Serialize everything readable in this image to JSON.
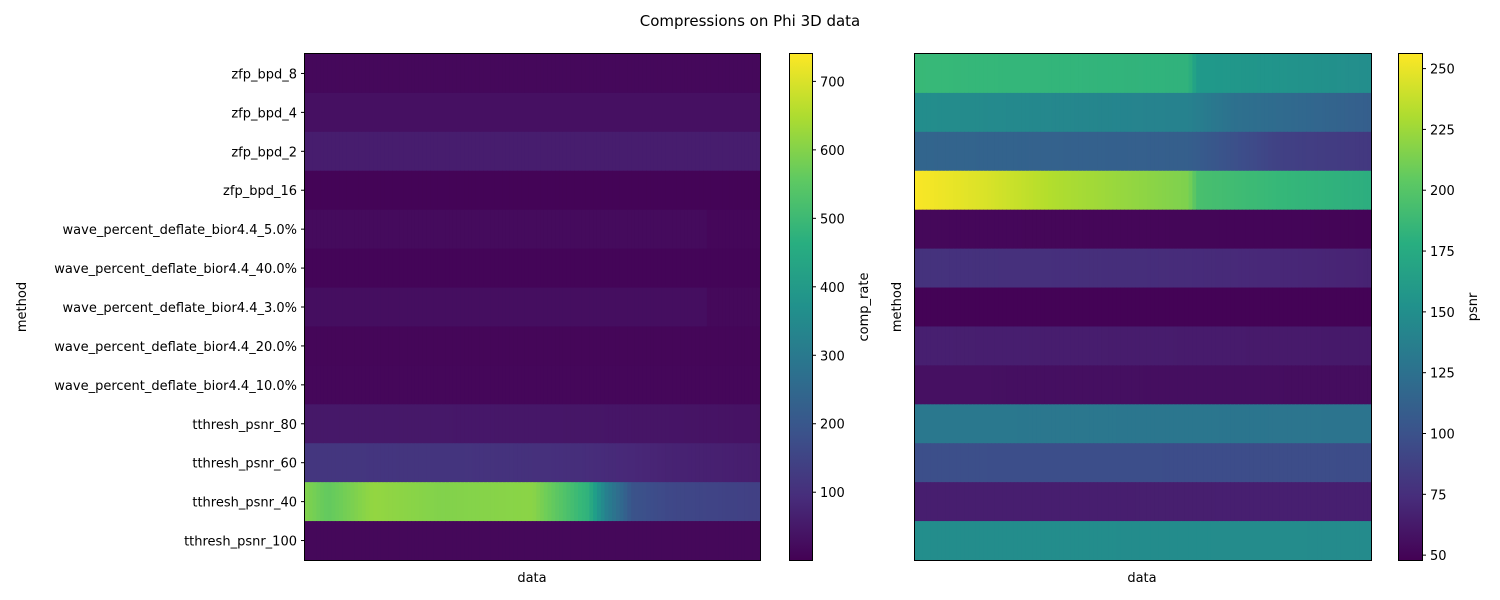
{
  "figure": {
    "title": "Compressions on Phi 3D data"
  },
  "chart_data": [
    {
      "type": "heatmap",
      "xlabel": "data",
      "ylabel": "method",
      "colorbar_label": "comp_rate",
      "colormap": "viridis",
      "clim": [
        1,
        740
      ],
      "colorbar_ticks": [
        100,
        200,
        300,
        400,
        500,
        600,
        700
      ],
      "rows": [
        {
          "label": "zfp_bpd_8",
          "profile": [
            [
              0,
              16
            ],
            [
              1,
              16
            ]
          ]
        },
        {
          "label": "zfp_bpd_4",
          "profile": [
            [
              0,
              32
            ],
            [
              1,
              32
            ]
          ]
        },
        {
          "label": "zfp_bpd_2",
          "profile": [
            [
              0,
              60
            ],
            [
              1,
              60
            ]
          ]
        },
        {
          "label": "zfp_bpd_16",
          "profile": [
            [
              0,
              8
            ],
            [
              1,
              8
            ]
          ]
        },
        {
          "label": "wave_percent_deflate_bior4.4_5.0%",
          "profile": [
            [
              0,
              22
            ],
            [
              0.88,
              22
            ],
            [
              0.885,
              14
            ],
            [
              1,
              14
            ]
          ]
        },
        {
          "label": "wave_percent_deflate_bior4.4_40.0%",
          "profile": [
            [
              0,
              10
            ],
            [
              1,
              10
            ]
          ]
        },
        {
          "label": "wave_percent_deflate_bior4.4_3.0%",
          "profile": [
            [
              0,
              28
            ],
            [
              0.88,
              28
            ],
            [
              0.885,
              18
            ],
            [
              1,
              18
            ]
          ]
        },
        {
          "label": "wave_percent_deflate_bior4.4_20.0%",
          "profile": [
            [
              0,
              12
            ],
            [
              1,
              12
            ]
          ]
        },
        {
          "label": "wave_percent_deflate_bior4.4_10.0%",
          "profile": [
            [
              0,
              14
            ],
            [
              1,
              14
            ]
          ]
        },
        {
          "label": "tthresh_psnr_80",
          "profile": [
            [
              0,
              50
            ],
            [
              0.4,
              48
            ],
            [
              0.8,
              42
            ],
            [
              1,
              36
            ]
          ]
        },
        {
          "label": "tthresh_psnr_60",
          "profile": [
            [
              0,
              118
            ],
            [
              0.35,
              112
            ],
            [
              0.6,
              98
            ],
            [
              0.8,
              72
            ],
            [
              1,
              60
            ]
          ]
        },
        {
          "label": "tthresh_psnr_40",
          "profile": [
            [
              0,
              600
            ],
            [
              0.05,
              560
            ],
            [
              0.15,
              620
            ],
            [
              0.3,
              600
            ],
            [
              0.5,
              610
            ],
            [
              0.62,
              480
            ],
            [
              0.66,
              330
            ],
            [
              0.72,
              190
            ],
            [
              0.8,
              160
            ],
            [
              1,
              140
            ]
          ]
        },
        {
          "label": "tthresh_psnr_100",
          "profile": [
            [
              0,
              15
            ],
            [
              1,
              15
            ]
          ]
        }
      ]
    },
    {
      "type": "heatmap",
      "xlabel": "data",
      "ylabel": "method",
      "colorbar_label": "psnr",
      "colormap": "viridis",
      "clim": [
        48,
        256
      ],
      "colorbar_ticks": [
        50,
        75,
        100,
        125,
        150,
        175,
        200,
        225,
        250
      ],
      "rows": [
        {
          "label": "zfp_bpd_8",
          "profile": [
            [
              0,
              188
            ],
            [
              0.6,
              182
            ],
            [
              0.62,
              160
            ],
            [
              1,
              150
            ]
          ]
        },
        {
          "label": "zfp_bpd_4",
          "profile": [
            [
              0,
              150
            ],
            [
              0.6,
              140
            ],
            [
              0.7,
              125
            ],
            [
              1,
              110
            ]
          ]
        },
        {
          "label": "zfp_bpd_2",
          "profile": [
            [
              0,
              115
            ],
            [
              0.6,
              110
            ],
            [
              0.8,
              88
            ],
            [
              1,
              82
            ]
          ]
        },
        {
          "label": "zfp_bpd_16",
          "profile": [
            [
              0,
              255
            ],
            [
              0.15,
              245
            ],
            [
              0.3,
              232
            ],
            [
              0.6,
              215
            ],
            [
              0.62,
              195
            ],
            [
              1,
              178
            ]
          ]
        },
        {
          "label": "wave_percent_deflate_bior4.4_5.0%",
          "profile": [
            [
              0,
              52
            ],
            [
              1,
              50
            ]
          ]
        },
        {
          "label": "wave_percent_deflate_bior4.4_40.0%",
          "profile": [
            [
              0,
              78
            ],
            [
              0.5,
              75
            ],
            [
              1,
              68
            ]
          ]
        },
        {
          "label": "wave_percent_deflate_bior4.4_3.0%",
          "profile": [
            [
              0,
              49
            ],
            [
              1,
              49
            ]
          ]
        },
        {
          "label": "wave_percent_deflate_bior4.4_20.0%",
          "profile": [
            [
              0,
              66
            ],
            [
              0.5,
              64
            ],
            [
              1,
              62
            ]
          ]
        },
        {
          "label": "wave_percent_deflate_bior4.4_10.0%",
          "profile": [
            [
              0,
              57
            ],
            [
              1,
              55
            ]
          ]
        },
        {
          "label": "tthresh_psnr_80",
          "profile": [
            [
              0,
              132
            ],
            [
              1,
              128
            ]
          ]
        },
        {
          "label": "tthresh_psnr_60",
          "profile": [
            [
              0,
              98
            ],
            [
              1,
              96
            ]
          ]
        },
        {
          "label": "tthresh_psnr_40",
          "profile": [
            [
              0,
              65
            ],
            [
              1,
              66
            ]
          ]
        },
        {
          "label": "tthresh_psnr_100",
          "profile": [
            [
              0,
              150
            ],
            [
              1,
              148
            ]
          ]
        }
      ]
    }
  ]
}
